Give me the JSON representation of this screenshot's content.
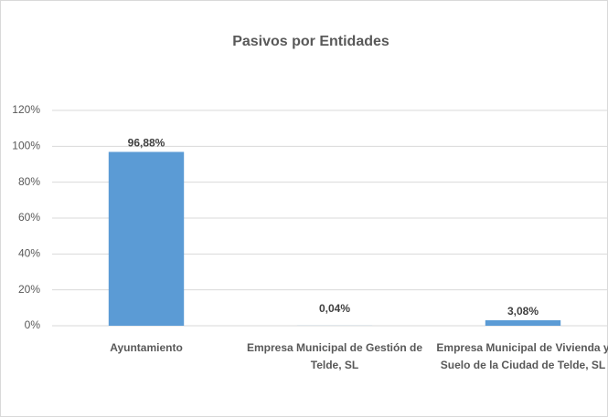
{
  "chart_data": {
    "type": "bar",
    "title": "Pasivos por Entidades",
    "categories": [
      "Ayuntamiento",
      "Empresa Municipal de Gestión de Telde, SL",
      "Empresa Municipal de Vivienda y Suelo de la Ciudad de Telde, SL"
    ],
    "values": [
      96.88,
      0.04,
      3.08
    ],
    "value_labels": [
      "96,88%",
      "0,04%",
      "3,08%"
    ],
    "color": "#5b9bd5",
    "ylim": [
      0,
      120
    ],
    "yticks": [
      {
        "value": 0,
        "label": "0%"
      },
      {
        "value": 20,
        "label": "20%"
      },
      {
        "value": 40,
        "label": "40%"
      },
      {
        "value": 60,
        "label": "60%"
      },
      {
        "value": 80,
        "label": "80%"
      },
      {
        "value": 100,
        "label": "100%"
      },
      {
        "value": 120,
        "label": "120%"
      }
    ],
    "grid": true
  }
}
